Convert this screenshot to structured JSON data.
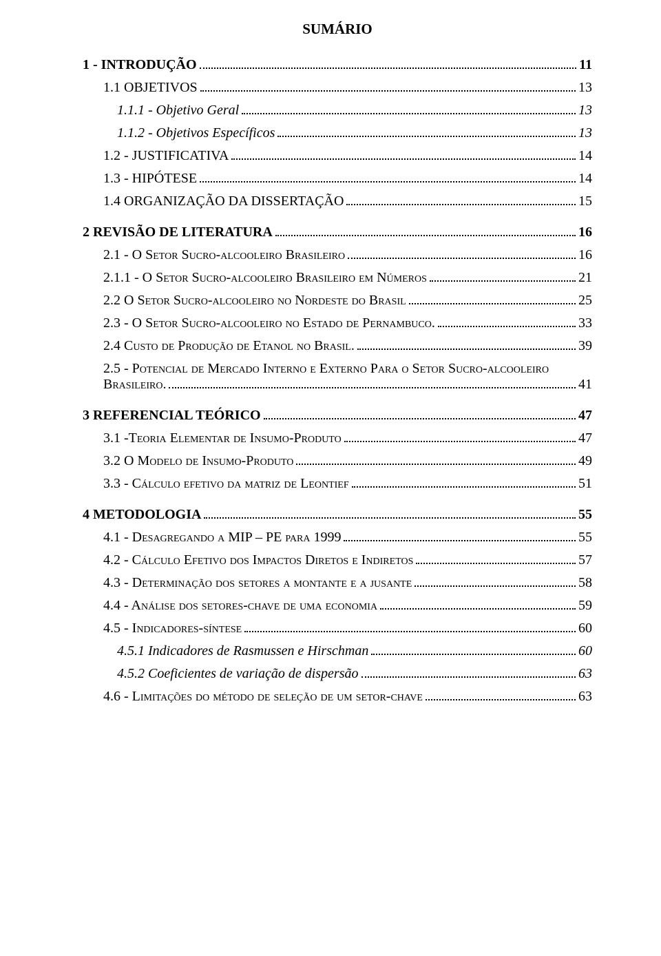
{
  "title": "SUMÁRIO",
  "entries": [
    {
      "label": "1 - INTRODUÇÃO",
      "page": "11",
      "level": 0,
      "italic": false,
      "spacer": false,
      "smallcaps": false
    },
    {
      "label": "1.1 OBJETIVOS",
      "page": "13",
      "level": 1,
      "italic": false,
      "spacer": false,
      "smallcaps": false
    },
    {
      "label": "1.1.1 - Objetivo Geral",
      "page": "13",
      "level": 2,
      "italic": true,
      "spacer": false,
      "smallcaps": false
    },
    {
      "label": "1.1.2 - Objetivos Específicos",
      "page": "13",
      "level": 2,
      "italic": true,
      "spacer": false,
      "smallcaps": false
    },
    {
      "label": "1.2 - JUSTIFICATIVA",
      "page": "14",
      "level": 1,
      "italic": false,
      "spacer": false,
      "smallcaps": false
    },
    {
      "label": "1.3 - HIPÓTESE",
      "page": "14",
      "level": 1,
      "italic": false,
      "spacer": false,
      "smallcaps": false
    },
    {
      "label": "1.4 ORGANIZAÇÃO DA DISSERTAÇÃO",
      "page": "15",
      "level": 1,
      "italic": false,
      "spacer": false,
      "smallcaps": false
    },
    {
      "label": "2 REVISÃO DE LITERATURA",
      "page": "16",
      "level": 0,
      "italic": false,
      "spacer": true,
      "smallcaps": false
    },
    {
      "label": "2.1 - O Setor Sucro-alcooleiro Brasileiro",
      "page": "16",
      "level": 1,
      "italic": false,
      "spacer": false,
      "smallcaps": true
    },
    {
      "label": "2.1.1 - O Setor Sucro-alcooleiro Brasileiro em Números",
      "page": "21",
      "level": 1,
      "italic": false,
      "spacer": false,
      "smallcaps": true
    },
    {
      "label": "2.2 O Setor Sucro-alcooleiro no Nordeste do Brasil",
      "page": "25",
      "level": 1,
      "italic": false,
      "spacer": false,
      "smallcaps": true
    },
    {
      "label": "2.3 - O Setor Sucro-alcooleiro no Estado de Pernambuco.",
      "page": "33",
      "level": 1,
      "italic": false,
      "spacer": false,
      "smallcaps": true
    },
    {
      "label": "2.4 Custo de Produção de Etanol no Brasil.",
      "page": "39",
      "level": 1,
      "italic": false,
      "spacer": false,
      "smallcaps": true
    },
    {
      "label_line1": "2.5 - Potencial de Mercado Interno e Externo Para o Setor Sucro-alcooleiro",
      "label_line2": "Brasileiro.",
      "page": "41",
      "level": 1,
      "italic": false,
      "spacer": false,
      "smallcaps": true,
      "multiline": true
    },
    {
      "label": "3 REFERENCIAL TEÓRICO",
      "page": "47",
      "level": 0,
      "italic": false,
      "spacer": true,
      "smallcaps": false
    },
    {
      "label": "3.1 -Teoria Elementar de Insumo-Produto",
      "page": "47",
      "level": 1,
      "italic": false,
      "spacer": false,
      "smallcaps": true
    },
    {
      "label": "3.2 O Modelo de Insumo-Produto",
      "page": "49",
      "level": 1,
      "italic": false,
      "spacer": false,
      "smallcaps": true
    },
    {
      "label": "3.3 - Cálculo efetivo da matriz de Leontief",
      "page": "51",
      "level": 1,
      "italic": false,
      "spacer": false,
      "smallcaps": true
    },
    {
      "label": "4 METODOLOGIA",
      "page": "55",
      "level": 0,
      "italic": false,
      "spacer": true,
      "smallcaps": false
    },
    {
      "label": "4.1 - Desagregando a MIP – PE para 1999",
      "page": "55",
      "level": 1,
      "italic": false,
      "spacer": false,
      "smallcaps": true
    },
    {
      "label": "4.2 - Cálculo Efetivo dos Impactos Diretos e Indiretos",
      "page": "57",
      "level": 1,
      "italic": false,
      "spacer": false,
      "smallcaps": true
    },
    {
      "label": "4.3 - Determinação dos setores a montante e a jusante",
      "page": "58",
      "level": 1,
      "italic": false,
      "spacer": false,
      "smallcaps": true
    },
    {
      "label": "4.4 - Análise dos setores-chave de uma economia",
      "page": "59",
      "level": 1,
      "italic": false,
      "spacer": false,
      "smallcaps": true
    },
    {
      "label": "4.5 - Indicadores-síntese",
      "page": "60",
      "level": 1,
      "italic": false,
      "spacer": false,
      "smallcaps": true
    },
    {
      "label": "4.5.1 Indicadores de Rasmussen e Hirschman",
      "page": "60",
      "level": 2,
      "italic": true,
      "spacer": false,
      "smallcaps": false
    },
    {
      "label": "4.5.2 Coeficientes de variação de dispersão",
      "page": "63",
      "level": 2,
      "italic": true,
      "spacer": false,
      "smallcaps": false
    },
    {
      "label": "4.6 - Limitações do método de seleção de um setor-chave",
      "page": "63",
      "level": 1,
      "italic": false,
      "spacer": false,
      "smallcaps": true
    }
  ]
}
